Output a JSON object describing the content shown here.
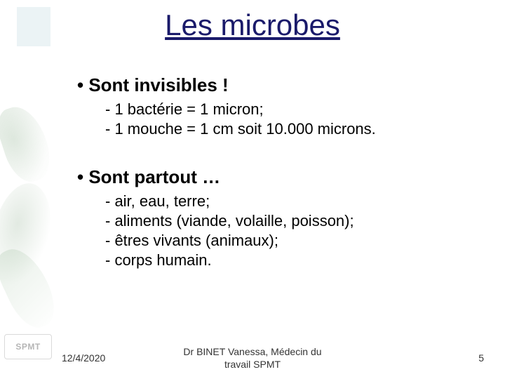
{
  "title": "Les microbes",
  "title_color": "#1a1a6a",
  "text_color": "#000000",
  "bullets": [
    {
      "heading": "Sont invisibles !",
      "items": [
        "- 1 bactérie = 1 micron;",
        "- 1 mouche = 1 cm soit 10.000 microns."
      ]
    },
    {
      "heading": "Sont partout …",
      "items": [
        "- air, eau, terre;",
        "- aliments (viande, volaille, poisson);",
        "- êtres vivants (animaux);",
        "- corps humain."
      ]
    }
  ],
  "footer": {
    "date": "12/4/2020",
    "author_line1": "Dr BINET Vanessa, Médecin du",
    "author_line2": "travail SPMT",
    "page": "5"
  },
  "logo_text": "SPMT"
}
